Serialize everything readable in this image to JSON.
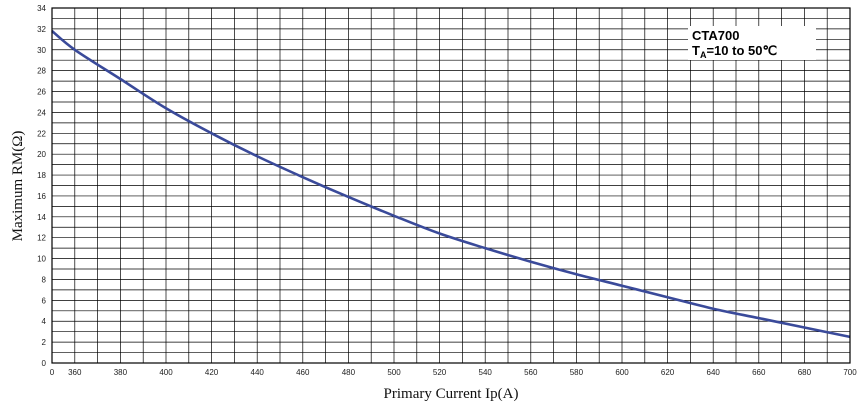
{
  "chart_data": {
    "type": "line",
    "title": "",
    "xlabel": "Primary Current Ip(A)",
    "ylabel": "Maximum RM(Ω)",
    "xlim": [
      350,
      700
    ],
    "ylim": [
      0,
      34
    ],
    "x_ticks": [
      "0",
      "360",
      "380",
      "400",
      "420",
      "440",
      "460",
      "480",
      "500",
      "520",
      "540",
      "560",
      "580",
      "600",
      "620",
      "640",
      "660",
      "680",
      "700"
    ],
    "y_ticks": [
      "0",
      "2",
      "4",
      "6",
      "8",
      "10",
      "12",
      "14",
      "16",
      "18",
      "20",
      "22",
      "24",
      "26",
      "28",
      "30",
      "32",
      "34"
    ],
    "grid": true,
    "legend": {
      "position": "top-right",
      "line1": "CTA700",
      "line2_prefix": "T",
      "line2_sub": "A",
      "line2_rest": "=10 to 50℃"
    },
    "series": [
      {
        "name": "",
        "color": "#3a4a9a",
        "x": [
          350,
          360,
          380,
          400,
          420,
          440,
          460,
          480,
          500,
          520,
          540,
          560,
          580,
          600,
          620,
          640,
          660,
          680,
          700
        ],
        "y": [
          31.8,
          30.0,
          27.2,
          24.4,
          22.0,
          19.8,
          17.8,
          15.9,
          14.1,
          12.4,
          11.0,
          9.7,
          8.5,
          7.4,
          6.3,
          5.2,
          4.3,
          3.4,
          2.5
        ]
      }
    ]
  }
}
